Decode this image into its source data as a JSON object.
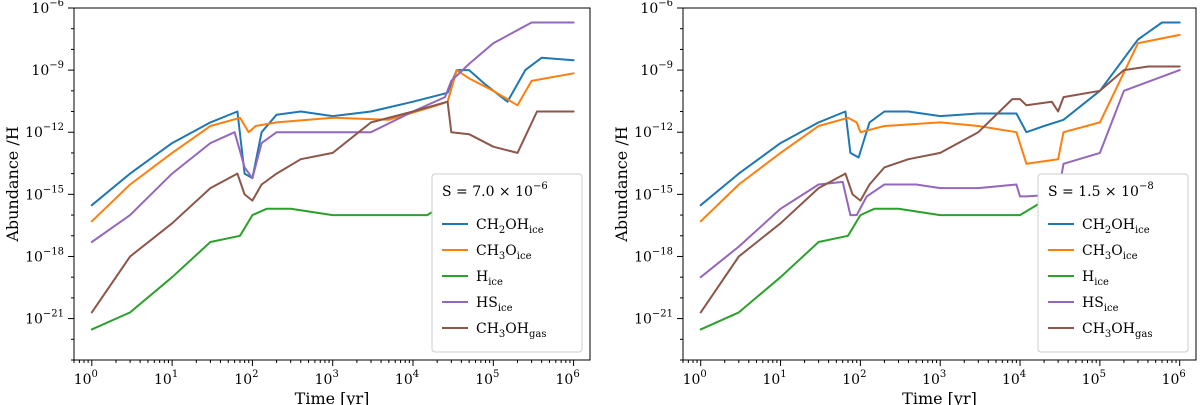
{
  "chart_data": [
    {
      "type": "line",
      "panel": "left",
      "xlabel": "Time [yr]",
      "ylabel": "Abundance /H",
      "xscale": "log",
      "yscale": "log",
      "xlim": [
        0.6,
        1600000.0
      ],
      "ylim": [
        1e-23,
        1e-06
      ],
      "x_tick_exponents": [
        0,
        1,
        2,
        3,
        4,
        5,
        6
      ],
      "y_tick_exponents": [
        -21,
        -18,
        -15,
        -12,
        -9,
        -6
      ],
      "annotation": {
        "base": "S = 7.0 × 10",
        "exp": "−6"
      },
      "legend_position": "lower-right",
      "series": [
        {
          "name": "CH2OHice",
          "base": "CH",
          "sub1": "2",
          "mid": "OH",
          "sub2": "ice",
          "color": "#1f77b4",
          "x": [
            1,
            3,
            10,
            30,
            65,
            80,
            100,
            130,
            200,
            400,
            1000,
            3000,
            10000,
            27000,
            35000,
            50000,
            80000,
            150000,
            250000,
            400000,
            1000000
          ],
          "y": [
            3e-16,
            1e-14,
            3e-13,
            3e-12,
            1e-11,
            1e-14,
            6e-15,
            1e-12,
            7e-12,
            1e-11,
            6e-12,
            1e-11,
            3e-11,
            8e-11,
            1e-09,
            1e-09,
            2e-10,
            3e-11,
            1e-09,
            4e-09,
            3e-09
          ]
        },
        {
          "name": "CH3Oice",
          "base": "CH",
          "sub1": "3",
          "mid": "O",
          "sub2": "ice",
          "color": "#ff7f0e",
          "x": [
            1,
            3,
            10,
            30,
            70,
            90,
            110,
            200,
            1000,
            5000,
            20000,
            27000,
            35000,
            50000,
            100000,
            200000,
            300000,
            1000000
          ],
          "y": [
            5e-17,
            3e-15,
            1e-13,
            2e-12,
            5e-12,
            1e-12,
            2e-12,
            3e-12,
            5e-12,
            4e-12,
            2e-11,
            3e-11,
            1e-09,
            4e-10,
            1e-10,
            2e-11,
            3e-10,
            7e-10
          ]
        },
        {
          "name": "Hice",
          "base": "H",
          "sub1": "",
          "mid": "",
          "sub2": "ice",
          "color": "#2ca02c",
          "x": [
            1,
            3,
            10,
            30,
            70,
            100,
            150,
            300,
            1000,
            3000,
            15000,
            30000,
            100000,
            200000,
            1000000
          ],
          "y": [
            3e-22,
            2e-21,
            1e-19,
            5e-18,
            1e-17,
            1e-16,
            2e-16,
            2e-16,
            1e-16,
            1e-16,
            1e-16,
            5e-16,
            2e-15,
            3e-15,
            2e-15
          ]
        },
        {
          "name": "HSice",
          "base": "HS",
          "sub1": "",
          "mid": "",
          "sub2": "ice",
          "color": "#9467bd",
          "x": [
            1,
            3,
            10,
            30,
            60,
            80,
            100,
            130,
            200,
            400,
            1000,
            3000,
            10000,
            25000,
            30000,
            50000,
            100000,
            300000,
            1000000
          ],
          "y": [
            5e-18,
            1e-16,
            1e-14,
            3e-13,
            1e-12,
            2e-14,
            6e-15,
            3e-13,
            1e-12,
            1e-12,
            1e-12,
            1e-12,
            1e-11,
            5e-11,
            3e-10,
            2e-09,
            2e-08,
            2e-07,
            2e-07
          ]
        },
        {
          "name": "CH3OHgas",
          "base": "CH",
          "sub1": "3",
          "mid": "OH",
          "sub2": "gas",
          "color": "#8c564b",
          "x": [
            1,
            3,
            10,
            30,
            65,
            80,
            100,
            130,
            200,
            400,
            1000,
            3000,
            10000,
            27000,
            30000,
            50000,
            100000,
            200000,
            350000,
            1000000
          ],
          "y": [
            2e-21,
            1e-18,
            4e-17,
            2e-15,
            1e-14,
            1e-15,
            5e-16,
            3e-15,
            1e-14,
            5e-14,
            1e-13,
            3e-12,
            1e-11,
            3e-11,
            1e-12,
            8e-13,
            2e-13,
            1e-13,
            1e-11,
            1e-11
          ]
        }
      ]
    },
    {
      "type": "line",
      "panel": "right",
      "xlabel": "Time [yr]",
      "ylabel": "Abundance /H",
      "xscale": "log",
      "yscale": "log",
      "xlim": [
        0.6,
        1600000.0
      ],
      "ylim": [
        1e-23,
        1e-06
      ],
      "x_tick_exponents": [
        0,
        1,
        2,
        3,
        4,
        5,
        6
      ],
      "y_tick_exponents": [
        -21,
        -18,
        -15,
        -12,
        -9,
        -6
      ],
      "annotation": {
        "base": "S = 1.5 × 10",
        "exp": "−8"
      },
      "legend_position": "lower-right",
      "series": [
        {
          "name": "CH2OHice",
          "base": "CH",
          "sub1": "2",
          "mid": "OH",
          "sub2": "ice",
          "color": "#1f77b4",
          "x": [
            1,
            3,
            10,
            30,
            65,
            75,
            95,
            130,
            200,
            400,
            1000,
            3000,
            9000,
            12000,
            20000,
            35000,
            100000,
            300000,
            600000,
            1000000
          ],
          "y": [
            3e-16,
            1e-14,
            3e-13,
            3e-12,
            1e-11,
            1e-13,
            6e-14,
            3e-12,
            1e-11,
            1e-11,
            6e-12,
            8e-12,
            8e-12,
            1e-12,
            2e-12,
            4e-12,
            1e-10,
            3e-08,
            2e-07,
            2e-07
          ]
        },
        {
          "name": "CH3Oice",
          "base": "CH",
          "sub1": "3",
          "mid": "O",
          "sub2": "ice",
          "color": "#ff7f0e",
          "x": [
            1,
            3,
            10,
            30,
            70,
            90,
            100,
            200,
            1000,
            3000,
            9000,
            12000,
            30000,
            35000,
            100000,
            300000,
            1000000
          ],
          "y": [
            5e-17,
            3e-15,
            1e-13,
            2e-12,
            5e-12,
            3e-12,
            1e-12,
            2e-12,
            3e-12,
            2e-12,
            1e-12,
            3e-14,
            5e-14,
            1e-12,
            3e-12,
            2e-08,
            5e-08
          ]
        },
        {
          "name": "Hice",
          "base": "H",
          "sub1": "",
          "mid": "",
          "sub2": "ice",
          "color": "#2ca02c",
          "x": [
            1,
            3,
            10,
            30,
            70,
            100,
            150,
            300,
            1000,
            3000,
            10000,
            20000,
            50000,
            100000,
            200000,
            1000000
          ],
          "y": [
            3e-22,
            2e-21,
            1e-19,
            5e-18,
            1e-17,
            1e-16,
            2e-16,
            2e-16,
            1e-16,
            1e-16,
            1e-16,
            5e-16,
            1e-15,
            3e-15,
            2e-15,
            3e-15
          ]
        },
        {
          "name": "HSice",
          "base": "HS",
          "sub1": "",
          "mid": "",
          "sub2": "ice",
          "color": "#9467bd",
          "x": [
            1,
            3,
            10,
            30,
            60,
            75,
            90,
            120,
            200,
            500,
            1000,
            3000,
            9000,
            10000,
            12000,
            30000,
            35000,
            100000,
            200000,
            1000000
          ],
          "y": [
            1e-19,
            3e-18,
            2e-16,
            3e-15,
            4e-15,
            1e-16,
            1e-16,
            8e-16,
            3e-15,
            3e-15,
            2e-15,
            2e-15,
            3e-15,
            8e-16,
            8e-16,
            1e-15,
            3e-14,
            1e-13,
            1e-10,
            1e-09
          ]
        },
        {
          "name": "CH3OHgas",
          "base": "CH",
          "sub1": "3",
          "mid": "OH",
          "sub2": "gas",
          "color": "#8c564b",
          "x": [
            1,
            3,
            10,
            30,
            65,
            80,
            100,
            130,
            200,
            400,
            1000,
            3000,
            8000,
            10000,
            12000,
            25000,
            30000,
            35000,
            100000,
            200000,
            400000,
            1000000
          ],
          "y": [
            2e-21,
            1e-18,
            4e-17,
            2e-15,
            1e-14,
            1e-15,
            5e-16,
            3e-15,
            2e-14,
            5e-14,
            1e-13,
            1e-12,
            4e-11,
            4e-11,
            2e-11,
            3e-11,
            1e-11,
            5e-11,
            1e-10,
            1e-09,
            1.5e-09,
            1.5e-09
          ]
        }
      ]
    }
  ]
}
